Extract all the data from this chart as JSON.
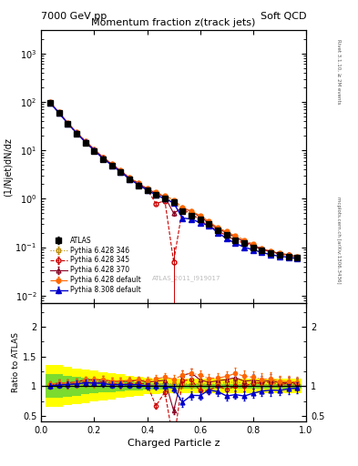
{
  "title_top_left": "7000 GeV pp",
  "title_top_right": "Soft QCD",
  "plot_title": "Momentum fraction z(track jets)",
  "ylabel_main": "(1/Njet)dN/dz",
  "ylabel_ratio": "Ratio to ATLAS",
  "xlabel": "Charged Particle z",
  "watermark": "ATLAS_2011_I919017",
  "right_label_top": "Rivet 3.1.10, ≥ 2M events",
  "right_label_mid": "mcplots.cern.ch [arXiv:1306.3436]",
  "xlim": [
    0,
    1.0
  ],
  "ylim_main": [
    0.007,
    3000
  ],
  "ylim_ratio": [
    0.4,
    2.4
  ],
  "x_data": [
    0.033,
    0.067,
    0.1,
    0.133,
    0.167,
    0.2,
    0.233,
    0.267,
    0.3,
    0.333,
    0.367,
    0.4,
    0.433,
    0.467,
    0.5,
    0.533,
    0.567,
    0.6,
    0.633,
    0.667,
    0.7,
    0.733,
    0.767,
    0.8,
    0.833,
    0.867,
    0.9,
    0.933,
    0.967
  ],
  "atlas_y": [
    95,
    58,
    35,
    22,
    14,
    9.5,
    6.5,
    4.8,
    3.5,
    2.5,
    1.9,
    1.5,
    1.2,
    1.0,
    0.85,
    0.55,
    0.45,
    0.38,
    0.3,
    0.22,
    0.18,
    0.14,
    0.12,
    0.1,
    0.085,
    0.075,
    0.07,
    0.065,
    0.06
  ],
  "atlas_yerr": [
    3,
    2,
    1.2,
    0.8,
    0.5,
    0.35,
    0.25,
    0.18,
    0.12,
    0.09,
    0.07,
    0.06,
    0.05,
    0.04,
    0.04,
    0.03,
    0.02,
    0.02,
    0.015,
    0.012,
    0.01,
    0.008,
    0.007,
    0.006,
    0.005,
    0.005,
    0.004,
    0.004,
    0.004
  ],
  "p345_y": [
    97,
    60,
    36,
    23,
    15,
    10,
    7.0,
    5.0,
    3.6,
    2.6,
    2.0,
    1.55,
    0.8,
    0.9,
    0.05,
    0.6,
    0.5,
    0.35,
    0.28,
    0.22,
    0.17,
    0.14,
    0.12,
    0.105,
    0.09,
    0.08,
    0.072,
    0.068,
    0.062
  ],
  "p345_yerr": [
    3,
    2,
    1.2,
    0.8,
    0.5,
    0.35,
    0.25,
    0.18,
    0.13,
    0.09,
    0.07,
    0.06,
    0.05,
    0.05,
    0.05,
    0.04,
    0.03,
    0.02,
    0.015,
    0.012,
    0.01,
    0.008,
    0.007,
    0.006,
    0.005,
    0.005,
    0.004,
    0.004,
    0.004
  ],
  "p346_y": [
    96,
    59,
    35.5,
    22.5,
    14.5,
    9.8,
    6.8,
    4.9,
    3.55,
    2.55,
    1.95,
    1.52,
    1.22,
    1.05,
    0.88,
    0.58,
    0.46,
    0.4,
    0.31,
    0.23,
    0.19,
    0.15,
    0.125,
    0.105,
    0.088,
    0.077,
    0.071,
    0.066,
    0.061
  ],
  "p346_yerr": [
    3,
    2,
    1.2,
    0.8,
    0.5,
    0.35,
    0.25,
    0.18,
    0.13,
    0.09,
    0.07,
    0.06,
    0.05,
    0.04,
    0.04,
    0.03,
    0.02,
    0.02,
    0.015,
    0.012,
    0.01,
    0.008,
    0.007,
    0.006,
    0.005,
    0.005,
    0.004,
    0.004,
    0.004
  ],
  "p370_y": [
    98,
    61,
    37,
    23.5,
    15.5,
    10.5,
    7.2,
    5.2,
    3.8,
    2.7,
    2.1,
    1.6,
    1.3,
    1.1,
    0.5,
    0.65,
    0.55,
    0.42,
    0.32,
    0.24,
    0.2,
    0.16,
    0.13,
    0.11,
    0.092,
    0.082,
    0.074,
    0.069,
    0.063
  ],
  "p370_yerr": [
    3.5,
    2.2,
    1.3,
    0.9,
    0.55,
    0.38,
    0.27,
    0.2,
    0.14,
    0.1,
    0.08,
    0.065,
    0.055,
    0.045,
    0.05,
    0.035,
    0.025,
    0.022,
    0.016,
    0.013,
    0.011,
    0.009,
    0.008,
    0.007,
    0.006,
    0.006,
    0.005,
    0.005,
    0.004
  ],
  "pdef_y": [
    98,
    61,
    37,
    23.5,
    15.5,
    10.5,
    7.2,
    5.2,
    3.8,
    2.75,
    2.1,
    1.65,
    1.35,
    1.15,
    0.95,
    0.65,
    0.55,
    0.45,
    0.34,
    0.25,
    0.21,
    0.17,
    0.14,
    0.115,
    0.095,
    0.084,
    0.076,
    0.07,
    0.064
  ],
  "pdef_yerr": [
    3.5,
    2.2,
    1.3,
    0.9,
    0.55,
    0.38,
    0.27,
    0.2,
    0.14,
    0.1,
    0.08,
    0.065,
    0.055,
    0.045,
    0.04,
    0.035,
    0.025,
    0.022,
    0.016,
    0.013,
    0.011,
    0.009,
    0.008,
    0.007,
    0.006,
    0.006,
    0.005,
    0.005,
    0.004
  ],
  "p8_y": [
    96,
    59,
    36,
    22.8,
    14.8,
    10.0,
    6.8,
    4.9,
    3.6,
    2.55,
    1.95,
    1.5,
    1.2,
    1.0,
    0.82,
    0.4,
    0.38,
    0.32,
    0.28,
    0.2,
    0.15,
    0.12,
    0.1,
    0.088,
    0.078,
    0.07,
    0.065,
    0.062,
    0.058
  ],
  "p8_yerr": [
    3,
    2,
    1.2,
    0.8,
    0.5,
    0.35,
    0.25,
    0.18,
    0.13,
    0.09,
    0.07,
    0.06,
    0.05,
    0.04,
    0.04,
    0.035,
    0.025,
    0.02,
    0.015,
    0.012,
    0.01,
    0.008,
    0.007,
    0.006,
    0.005,
    0.005,
    0.004,
    0.004,
    0.004
  ],
  "ratio_band_yellow_lo": [
    0.65,
    0.65,
    0.68,
    0.7,
    0.72,
    0.74,
    0.76,
    0.78,
    0.8,
    0.82,
    0.84,
    0.86,
    0.87,
    0.88,
    0.88,
    0.88,
    0.88,
    0.88,
    0.88,
    0.88,
    0.88,
    0.88,
    0.88,
    0.88,
    0.88,
    0.88,
    0.88,
    0.88,
    0.88
  ],
  "ratio_band_yellow_hi": [
    1.35,
    1.35,
    1.32,
    1.3,
    1.28,
    1.26,
    1.24,
    1.22,
    1.2,
    1.18,
    1.16,
    1.14,
    1.13,
    1.12,
    1.12,
    1.12,
    1.12,
    1.12,
    1.12,
    1.12,
    1.12,
    1.12,
    1.12,
    1.12,
    1.12,
    1.12,
    1.12,
    1.12,
    1.12
  ],
  "ratio_band_green_lo": [
    0.8,
    0.8,
    0.82,
    0.84,
    0.86,
    0.88,
    0.89,
    0.9,
    0.91,
    0.92,
    0.93,
    0.94,
    0.95,
    0.95,
    0.96,
    0.96,
    0.96,
    0.96,
    0.96,
    0.96,
    0.96,
    0.96,
    0.96,
    0.96,
    0.96,
    0.96,
    0.96,
    0.96,
    0.96
  ],
  "ratio_band_green_hi": [
    1.2,
    1.2,
    1.18,
    1.16,
    1.14,
    1.12,
    1.11,
    1.1,
    1.09,
    1.08,
    1.07,
    1.06,
    1.05,
    1.05,
    1.04,
    1.04,
    1.04,
    1.04,
    1.04,
    1.04,
    1.04,
    1.04,
    1.04,
    1.04,
    1.04,
    1.04,
    1.04,
    1.04,
    1.04
  ],
  "color_atlas": "#000000",
  "color_p345": "#cc0000",
  "color_p346": "#bb8800",
  "color_p370": "#880022",
  "color_pdef": "#ff6600",
  "color_p8": "#0000cc",
  "color_yellow": "#ffff00",
  "color_green": "#44cc44"
}
